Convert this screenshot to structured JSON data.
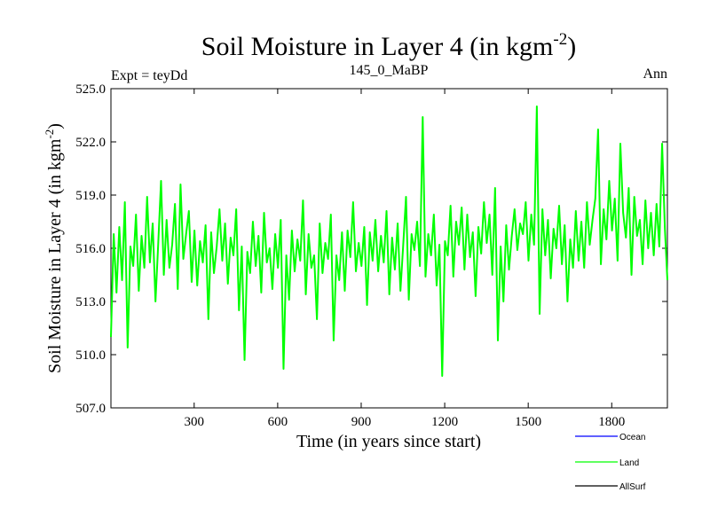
{
  "chart_data": {
    "type": "line",
    "title": "Soil Moisture in Layer 4 (in kgm",
    "title_superscript": "-2",
    "title_close": ")",
    "subtitle_left": "Expt = teyDd",
    "subtitle_center": "145_0_MaBP",
    "subtitle_right": "Ann",
    "xlabel": "Time (in years since start)",
    "ylabel": "Soil Moisture in Layer 4 (in kgm",
    "ylabel_superscript": "-2",
    "ylabel_close": ")",
    "xlim": [
      1,
      2000
    ],
    "ylim": [
      507.0,
      525.0
    ],
    "xticks": [
      300,
      600,
      900,
      1200,
      1500,
      1800
    ],
    "xtick_labels": [
      "300",
      "600",
      "900",
      "1200",
      "1500",
      "1800"
    ],
    "yticks": [
      507.0,
      510.0,
      513.0,
      516.0,
      519.0,
      522.0,
      525.0
    ],
    "ytick_labels": [
      "507.0",
      "510.0",
      "513.0",
      "516.0",
      "519.0",
      "522.0",
      "525.0"
    ],
    "legend_position": "bottom-right, outside plot",
    "series": [
      {
        "name": "Land",
        "color": "#00ff00",
        "x_start": 1,
        "x_step": 10,
        "values": [
          511.0,
          516.8,
          513.5,
          517.2,
          514.2,
          518.6,
          510.4,
          516.1,
          515.0,
          517.9,
          513.6,
          516.7,
          514.9,
          518.9,
          515.2,
          517.4,
          513.0,
          516.3,
          519.8,
          514.5,
          517.6,
          514.9,
          516.2,
          518.5,
          513.7,
          519.6,
          515.4,
          516.8,
          518.1,
          514.1,
          517.0,
          513.9,
          516.4,
          515.2,
          517.3,
          512.0,
          516.9,
          514.6,
          516.1,
          518.2,
          515.3,
          517.4,
          514.0,
          516.6,
          515.6,
          518.2,
          512.5,
          516.1,
          509.7,
          515.8,
          514.6,
          517.5,
          515.0,
          516.7,
          513.5,
          518.0,
          515.2,
          516.0,
          513.7,
          516.8,
          514.9,
          517.6,
          509.2,
          515.6,
          513.1,
          517.0,
          514.7,
          516.5,
          515.3,
          518.7,
          513.4,
          516.8,
          514.9,
          515.6,
          512.0,
          517.4,
          514.6,
          516.3,
          515.4,
          517.9,
          510.8,
          515.6,
          514.2,
          516.9,
          513.6,
          517.0,
          515.5,
          518.6,
          514.7,
          516.3,
          515.0,
          517.2,
          512.8,
          516.9,
          515.3,
          517.6,
          514.7,
          516.7,
          515.2,
          518.1,
          513.4,
          516.6,
          514.8,
          517.4,
          513.6,
          516.2,
          518.9,
          513.1,
          516.8,
          515.9,
          517.5,
          515.0,
          523.4,
          514.4,
          516.8,
          515.6,
          517.9,
          513.9,
          516.2,
          508.8,
          516.4,
          515.6,
          518.4,
          514.4,
          517.5,
          516.2,
          518.3,
          514.8,
          517.9,
          515.5,
          516.9,
          513.3,
          517.2,
          515.7,
          518.6,
          516.3,
          517.9,
          514.5,
          519.4,
          510.8,
          516.1,
          513.0,
          517.3,
          514.8,
          516.7,
          518.2,
          515.9,
          517.4,
          516.8,
          518.6,
          515.3,
          517.9,
          516.2,
          524.0,
          512.3,
          518.2,
          515.6,
          517.6,
          514.3,
          517.1,
          516.0,
          518.4,
          515.1,
          517.3,
          513.0,
          516.5,
          514.9,
          518.1,
          515.3,
          517.5,
          514.9,
          518.6,
          516.2,
          517.6,
          518.8,
          522.7,
          515.1,
          518.2,
          516.5,
          519.8,
          517.0,
          518.8,
          515.3,
          521.9,
          518.0,
          516.6,
          519.4,
          514.5,
          518.9,
          516.7,
          517.6,
          515.1,
          518.7,
          516.0,
          518.0,
          515.6,
          518.5,
          516.1,
          521.9,
          517.1,
          514.2
        ]
      },
      {
        "name": "Ocean",
        "color": "#0000ff",
        "values": []
      },
      {
        "name": "AllSurf",
        "color": "#000000",
        "values": []
      }
    ],
    "legend": [
      {
        "label": "Ocean",
        "color": "#0000ff"
      },
      {
        "label": "Land",
        "color": "#00ff00"
      },
      {
        "label": "AllSurf",
        "color": "#000000"
      }
    ]
  }
}
